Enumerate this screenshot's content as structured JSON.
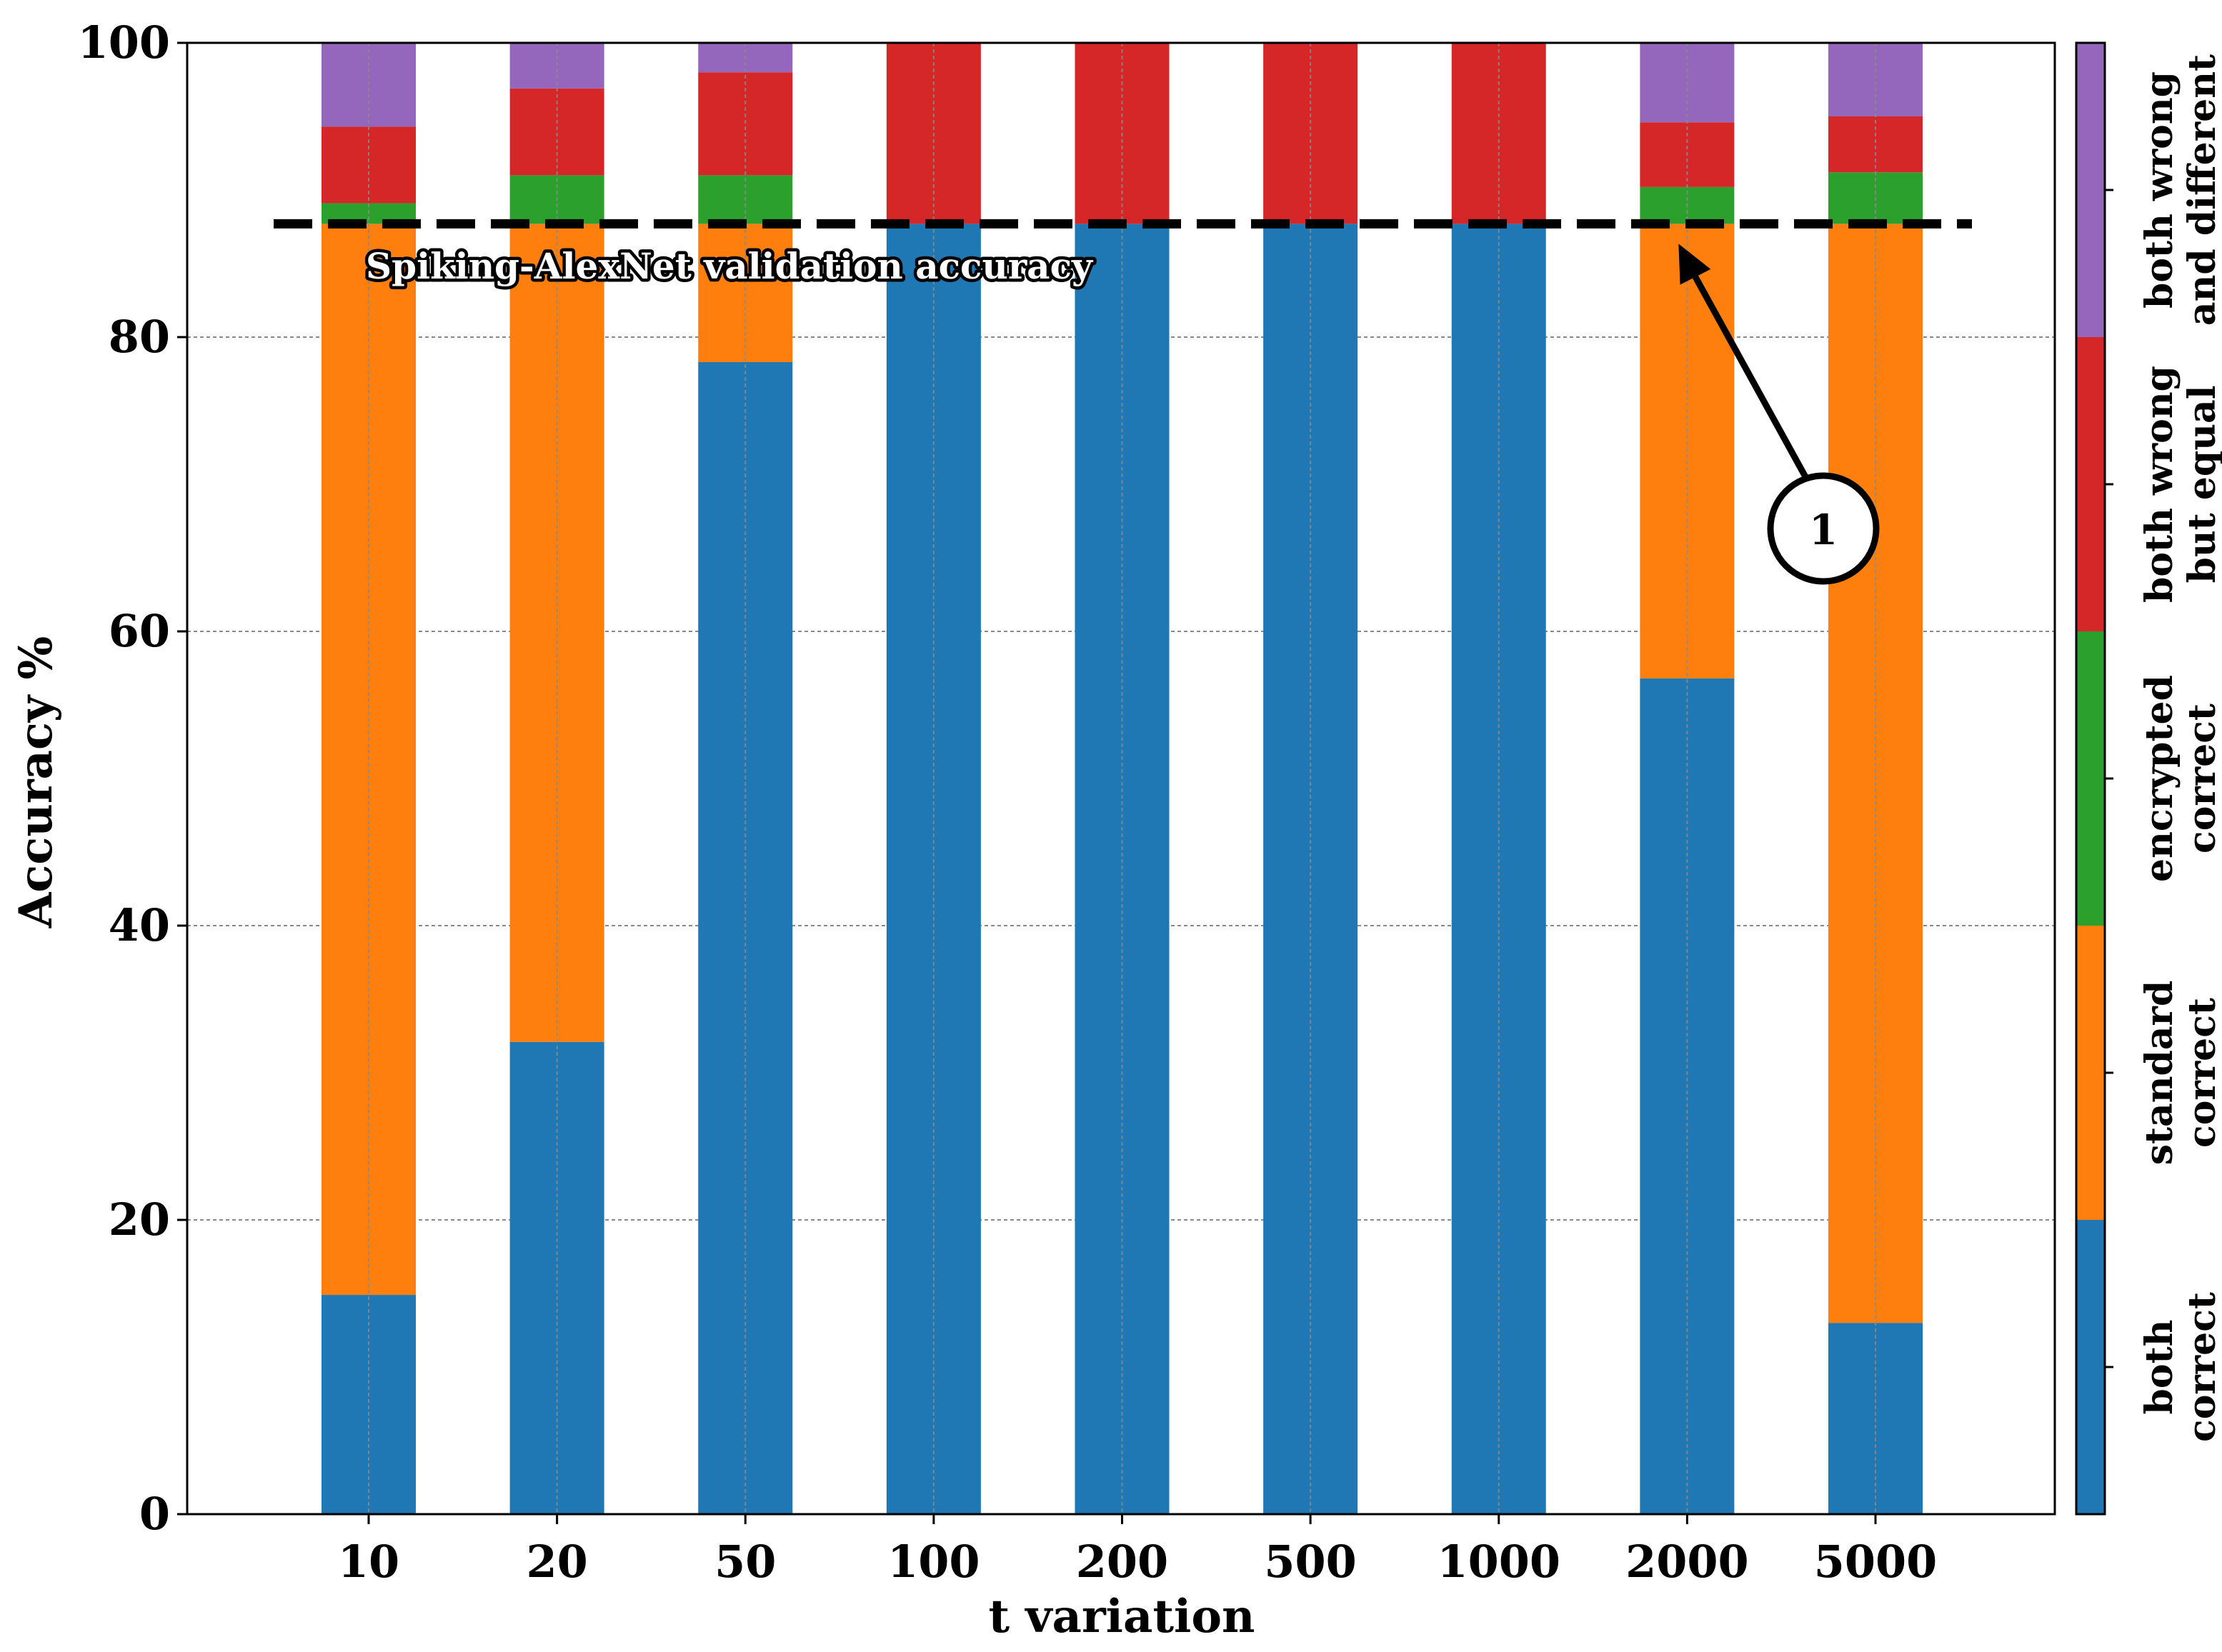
{
  "chart_data": {
    "type": "bar",
    "stacked": true,
    "xlabel": "t variation",
    "ylabel": "Accuracy %",
    "ylim": [
      0,
      100
    ],
    "yticks": [
      0,
      20,
      40,
      60,
      80,
      100
    ],
    "grid": true,
    "categories": [
      "10",
      "20",
      "50",
      "100",
      "200",
      "500",
      "1000",
      "2000",
      "5000"
    ],
    "series": [
      {
        "name": "both correct",
        "color": "#1f77b4",
        "values": [
          14.9,
          32.1,
          78.3,
          87.7,
          87.7,
          87.7,
          87.7,
          56.8,
          13.0
        ]
      },
      {
        "name": "standard correct",
        "color": "#ff7f0e",
        "values": [
          72.8,
          55.6,
          9.4,
          0,
          0,
          0,
          0,
          30.9,
          74.7
        ]
      },
      {
        "name": "encrypted correct",
        "color": "#2ca02c",
        "values": [
          1.4,
          3.3,
          3.3,
          0,
          0,
          0,
          0,
          2.5,
          3.5
        ]
      },
      {
        "name": "both wrong but equal",
        "color": "#d62728",
        "values": [
          5.2,
          5.9,
          7.0,
          12.3,
          12.3,
          12.3,
          12.3,
          4.4,
          3.8
        ]
      },
      {
        "name": "both wrong and different",
        "color": "#9467bd",
        "values": [
          5.7,
          3.1,
          2.0,
          0,
          0,
          0,
          0,
          5.4,
          5.0
        ]
      }
    ],
    "reference_line": {
      "label": "Spiking-AlexNet validation accuracy",
      "value": 87.7,
      "style": "dashed",
      "color": "#000000"
    },
    "callout": {
      "label": "1",
      "points_to_category": "2000",
      "points_to_value": 87.7
    },
    "colorbar": {
      "labels": [
        [
          "both",
          "correct"
        ],
        [
          "standard",
          "correct"
        ],
        [
          "encrypted",
          "correct"
        ],
        [
          "both wrong",
          "but equal"
        ],
        [
          "both wrong",
          "and different"
        ]
      ]
    }
  }
}
